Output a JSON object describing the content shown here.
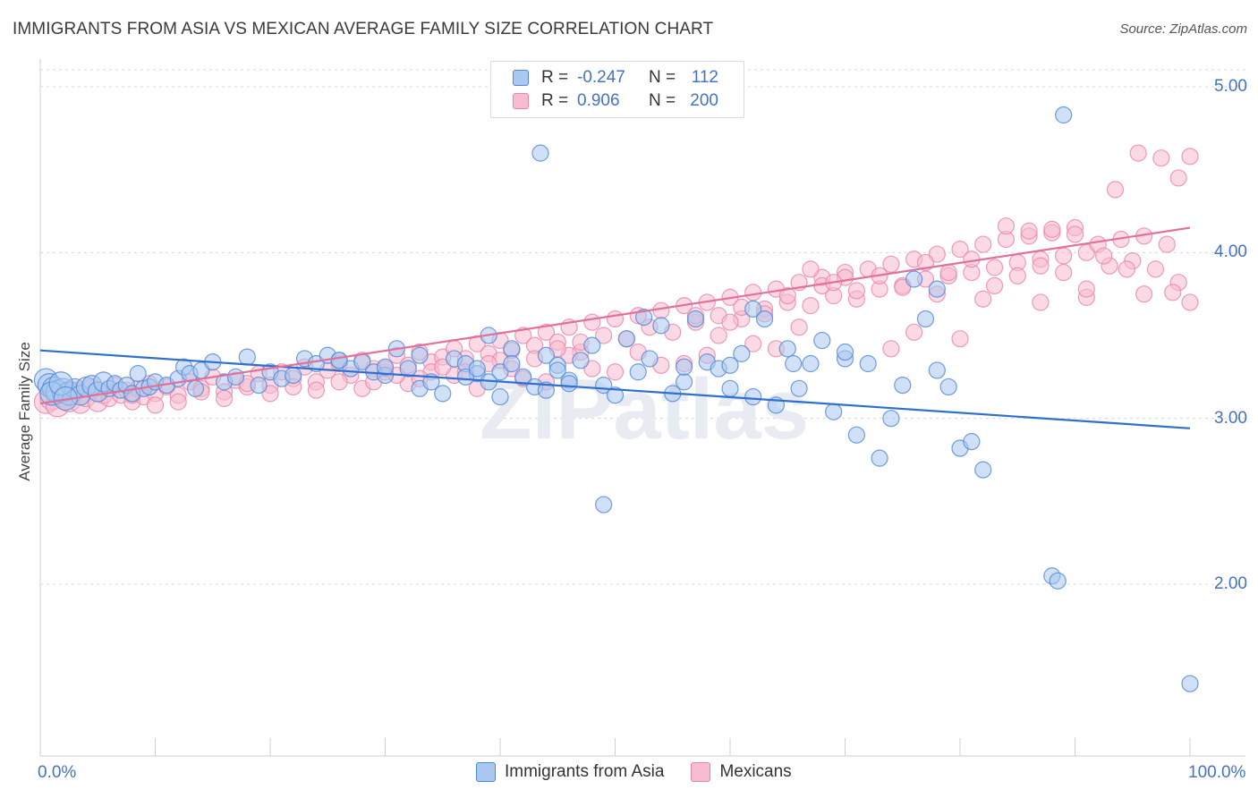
{
  "header": {
    "title": "IMMIGRANTS FROM ASIA VS MEXICAN AVERAGE FAMILY SIZE CORRELATION CHART",
    "source": "Source: ZipAtlas.com"
  },
  "watermark": "ZIPatlas",
  "legend": {
    "rows": [
      {
        "r_label": "R =",
        "r_value": "-0.247",
        "n_label": "N =",
        "n_value": "112"
      },
      {
        "r_label": "R =",
        "r_value": "0.906",
        "n_label": "N =",
        "n_value": "200"
      }
    ]
  },
  "bottom_legend": [
    "Immigrants from Asia",
    "Mexicans"
  ],
  "colors": {
    "asia_fill": "#aac8f0",
    "asia_stroke": "#4f86d6",
    "asia_line": "#2f6fd0",
    "mex_fill": "#f7bcd0",
    "mex_stroke": "#e884a8",
    "mex_line": "#e4709a",
    "tick_text": "#4472c4",
    "grid": "#d8d8d8"
  },
  "chart_data": {
    "type": "scatter",
    "title": "IMMIGRANTS FROM ASIA VS MEXICAN AVERAGE FAMILY SIZE CORRELATION CHART",
    "xlabel": "",
    "ylabel": "Average Family Size",
    "xlim": [
      0,
      100
    ],
    "ylim": [
      1.2,
      5.3
    ],
    "x_tick_labels": [
      "0.0%",
      "100.0%"
    ],
    "y_ticks": [
      2.0,
      3.0,
      4.0,
      5.0
    ],
    "y_tick_labels": [
      "2.00",
      "3.00",
      "4.00",
      "5.00"
    ],
    "grid": true,
    "legend_placement": "top-center",
    "series": [
      {
        "name": "Immigrants from Asia",
        "r": -0.247,
        "n": 112,
        "trend": {
          "x": [
            0,
            100
          ],
          "y": [
            3.41,
            2.94
          ]
        },
        "points": [
          [
            0.5,
            3.23
          ],
          [
            0.8,
            3.2
          ],
          [
            1.2,
            3.18
          ],
          [
            1.5,
            3.16
          ],
          [
            2,
            3.17
          ],
          [
            2.5,
            3.15
          ],
          [
            3,
            3.18
          ],
          [
            3.5,
            3.14
          ],
          [
            4,
            3.19
          ],
          [
            4.5,
            3.2
          ],
          [
            5,
            3.16
          ],
          [
            5.5,
            3.22
          ],
          [
            6,
            3.18
          ],
          [
            6.5,
            3.21
          ],
          [
            7,
            3.17
          ],
          [
            7.5,
            3.2
          ],
          [
            8,
            3.15
          ],
          [
            8.5,
            3.27
          ],
          [
            9,
            3.18
          ],
          [
            9.5,
            3.19
          ],
          [
            10,
            3.22
          ],
          [
            11,
            3.2
          ],
          [
            12,
            3.24
          ],
          [
            12.5,
            3.31
          ],
          [
            13,
            3.27
          ],
          [
            13.5,
            3.18
          ],
          [
            14,
            3.29
          ],
          [
            15,
            3.34
          ],
          [
            16,
            3.22
          ],
          [
            17,
            3.25
          ],
          [
            18,
            3.37
          ],
          [
            19,
            3.2
          ],
          [
            20,
            3.28
          ],
          [
            21,
            3.24
          ],
          [
            22,
            3.26
          ],
          [
            23,
            3.36
          ],
          [
            24,
            3.33
          ],
          [
            25,
            3.38
          ],
          [
            26,
            3.35
          ],
          [
            27,
            3.3
          ],
          [
            28,
            3.34
          ],
          [
            29,
            3.28
          ],
          [
            30,
            3.26
          ],
          [
            31,
            3.42
          ],
          [
            32,
            3.3
          ],
          [
            33,
            3.18
          ],
          [
            34,
            3.22
          ],
          [
            35,
            3.15
          ],
          [
            36,
            3.36
          ],
          [
            37,
            3.33
          ],
          [
            38,
            3.27
          ],
          [
            39,
            3.5
          ],
          [
            40,
            3.28
          ],
          [
            41,
            3.42
          ],
          [
            42,
            3.25
          ],
          [
            43,
            3.19
          ],
          [
            44,
            3.38
          ],
          [
            45,
            3.32
          ],
          [
            46,
            3.23
          ],
          [
            47,
            3.35
          ],
          [
            48,
            3.44
          ],
          [
            49,
            3.2
          ],
          [
            50,
            3.14
          ],
          [
            51,
            3.48
          ],
          [
            52,
            3.28
          ],
          [
            53,
            3.36
          ],
          [
            54,
            3.56
          ],
          [
            55,
            3.15
          ],
          [
            56,
            3.22
          ],
          [
            57,
            3.6
          ],
          [
            58,
            3.34
          ],
          [
            59,
            3.3
          ],
          [
            60,
            3.18
          ],
          [
            61,
            3.39
          ],
          [
            62,
            3.66
          ],
          [
            63,
            3.6
          ],
          [
            64,
            3.08
          ],
          [
            65,
            3.42
          ],
          [
            66,
            3.18
          ],
          [
            67,
            3.33
          ],
          [
            68,
            3.47
          ],
          [
            69,
            3.04
          ],
          [
            70,
            3.36
          ],
          [
            71,
            2.9
          ],
          [
            72,
            3.33
          ],
          [
            73,
            2.76
          ],
          [
            74,
            3.0
          ],
          [
            75,
            3.2
          ],
          [
            76,
            3.84
          ],
          [
            77,
            3.6
          ],
          [
            78,
            3.78
          ],
          [
            79,
            3.19
          ],
          [
            80,
            2.82
          ],
          [
            81,
            2.86
          ],
          [
            82,
            2.69
          ],
          [
            88,
            2.05
          ],
          [
            89,
            4.83
          ],
          [
            43.5,
            4.6
          ],
          [
            49,
            2.48
          ],
          [
            44,
            3.17
          ],
          [
            52.5,
            3.61
          ],
          [
            56,
            3.31
          ],
          [
            39,
            3.22
          ],
          [
            37,
            3.25
          ],
          [
            40,
            3.13
          ],
          [
            33,
            3.38
          ],
          [
            26,
            3.35
          ],
          [
            30,
            3.31
          ],
          [
            45,
            3.29
          ],
          [
            60,
            3.32
          ],
          [
            65.5,
            3.33
          ],
          [
            41,
            3.33
          ],
          [
            38,
            3.3
          ],
          [
            46,
            3.21
          ],
          [
            70,
            3.4
          ],
          [
            78,
            3.29
          ],
          [
            62,
            3.13
          ],
          [
            1,
            3.15
          ],
          [
            1.8,
            3.21
          ],
          [
            2.2,
            3.12
          ],
          [
            88.5,
            2.02
          ],
          [
            100,
            1.4
          ]
        ]
      },
      {
        "name": "Mexicans",
        "r": 0.906,
        "n": 200,
        "trend": {
          "x": [
            0,
            100
          ],
          "y": [
            3.09,
            4.15
          ]
        },
        "points": [
          [
            0.5,
            3.1
          ],
          [
            1,
            3.12
          ],
          [
            1.5,
            3.08
          ],
          [
            2,
            3.14
          ],
          [
            2.5,
            3.11
          ],
          [
            3,
            3.16
          ],
          [
            3.5,
            3.09
          ],
          [
            4,
            3.13
          ],
          [
            4.5,
            3.18
          ],
          [
            5,
            3.1
          ],
          [
            5.5,
            3.15
          ],
          [
            6,
            3.12
          ],
          [
            6.5,
            3.2
          ],
          [
            7,
            3.14
          ],
          [
            7.5,
            3.17
          ],
          [
            8,
            3.1
          ],
          [
            8.5,
            3.18
          ],
          [
            9,
            3.13
          ],
          [
            9.5,
            3.21
          ],
          [
            10,
            3.15
          ],
          [
            11,
            3.19
          ],
          [
            12,
            3.14
          ],
          [
            13,
            3.22
          ],
          [
            14,
            3.18
          ],
          [
            15,
            3.25
          ],
          [
            16,
            3.16
          ],
          [
            17,
            3.23
          ],
          [
            18,
            3.19
          ],
          [
            19,
            3.27
          ],
          [
            20,
            3.2
          ],
          [
            21,
            3.28
          ],
          [
            22,
            3.24
          ],
          [
            23,
            3.31
          ],
          [
            24,
            3.22
          ],
          [
            25,
            3.29
          ],
          [
            26,
            3.33
          ],
          [
            27,
            3.26
          ],
          [
            28,
            3.35
          ],
          [
            29,
            3.3
          ],
          [
            30,
            3.28
          ],
          [
            31,
            3.38
          ],
          [
            32,
            3.32
          ],
          [
            33,
            3.4
          ],
          [
            34,
            3.34
          ],
          [
            35,
            3.37
          ],
          [
            36,
            3.42
          ],
          [
            37,
            3.36
          ],
          [
            38,
            3.45
          ],
          [
            39,
            3.39
          ],
          [
            40,
            3.47
          ],
          [
            41,
            3.41
          ],
          [
            42,
            3.5
          ],
          [
            43,
            3.44
          ],
          [
            44,
            3.52
          ],
          [
            45,
            3.46
          ],
          [
            46,
            3.55
          ],
          [
            47,
            3.4
          ],
          [
            48,
            3.58
          ],
          [
            49,
            3.5
          ],
          [
            50,
            3.6
          ],
          [
            51,
            3.48
          ],
          [
            52,
            3.62
          ],
          [
            53,
            3.55
          ],
          [
            54,
            3.65
          ],
          [
            55,
            3.52
          ],
          [
            56,
            3.68
          ],
          [
            57,
            3.58
          ],
          [
            58,
            3.7
          ],
          [
            59,
            3.62
          ],
          [
            60,
            3.73
          ],
          [
            61,
            3.6
          ],
          [
            62,
            3.76
          ],
          [
            63,
            3.66
          ],
          [
            64,
            3.78
          ],
          [
            65,
            3.7
          ],
          [
            66,
            3.82
          ],
          [
            67,
            3.68
          ],
          [
            68,
            3.85
          ],
          [
            69,
            3.74
          ],
          [
            70,
            3.88
          ],
          [
            71,
            3.72
          ],
          [
            72,
            3.9
          ],
          [
            73,
            3.78
          ],
          [
            74,
            3.93
          ],
          [
            75,
            3.8
          ],
          [
            76,
            3.96
          ],
          [
            77,
            3.84
          ],
          [
            78,
            3.99
          ],
          [
            79,
            3.86
          ],
          [
            80,
            4.02
          ],
          [
            81,
            3.88
          ],
          [
            82,
            4.05
          ],
          [
            83,
            3.91
          ],
          [
            84,
            4.08
          ],
          [
            85,
            3.94
          ],
          [
            86,
            4.1
          ],
          [
            87,
            3.96
          ],
          [
            88,
            4.12
          ],
          [
            89,
            3.98
          ],
          [
            90,
            4.15
          ],
          [
            91,
            4.0
          ],
          [
            92,
            4.05
          ],
          [
            93,
            3.92
          ],
          [
            94,
            4.08
          ],
          [
            95,
            3.95
          ],
          [
            96,
            4.1
          ],
          [
            97,
            3.9
          ],
          [
            98,
            4.05
          ],
          [
            99,
            3.82
          ],
          [
            100,
            3.7
          ],
          [
            93.5,
            4.38
          ],
          [
            95.5,
            4.6
          ],
          [
            97.5,
            4.57
          ],
          [
            99,
            4.45
          ],
          [
            100,
            4.58
          ],
          [
            84,
            4.16
          ],
          [
            88,
            4.14
          ],
          [
            90,
            4.11
          ],
          [
            86,
            4.13
          ],
          [
            96,
            3.75
          ],
          [
            98.5,
            3.76
          ],
          [
            91,
            3.73
          ],
          [
            87,
            3.7
          ],
          [
            82,
            3.72
          ],
          [
            78,
            3.75
          ],
          [
            74,
            3.42
          ],
          [
            76,
            3.52
          ],
          [
            80,
            3.48
          ],
          [
            70,
            3.85
          ],
          [
            68,
            3.8
          ],
          [
            66,
            3.55
          ],
          [
            64,
            3.42
          ],
          [
            62,
            3.45
          ],
          [
            60,
            3.58
          ],
          [
            58,
            3.38
          ],
          [
            56,
            3.33
          ],
          [
            54,
            3.32
          ],
          [
            52,
            3.4
          ],
          [
            50,
            3.28
          ],
          [
            48,
            3.3
          ],
          [
            46,
            3.38
          ],
          [
            44,
            3.22
          ],
          [
            42,
            3.24
          ],
          [
            40,
            3.35
          ],
          [
            38,
            3.18
          ],
          [
            36,
            3.26
          ],
          [
            34,
            3.28
          ],
          [
            32,
            3.21
          ],
          [
            30,
            3.3
          ],
          [
            28,
            3.18
          ],
          [
            26,
            3.22
          ],
          [
            24,
            3.17
          ],
          [
            22,
            3.19
          ],
          [
            20,
            3.15
          ],
          [
            18,
            3.21
          ],
          [
            16,
            3.12
          ],
          [
            14,
            3.16
          ],
          [
            12,
            3.1
          ],
          [
            10,
            3.08
          ],
          [
            8,
            3.14
          ],
          [
            45,
            3.42
          ],
          [
            47,
            3.46
          ],
          [
            43,
            3.36
          ],
          [
            41,
            3.3
          ],
          [
            39,
            3.33
          ],
          [
            37,
            3.28
          ],
          [
            35,
            3.31
          ],
          [
            33,
            3.24
          ],
          [
            31,
            3.26
          ],
          [
            29,
            3.22
          ],
          [
            57,
            3.62
          ],
          [
            59,
            3.5
          ],
          [
            61,
            3.67
          ],
          [
            63,
            3.63
          ],
          [
            65,
            3.74
          ],
          [
            67,
            3.9
          ],
          [
            69,
            3.82
          ],
          [
            71,
            3.77
          ],
          [
            73,
            3.86
          ],
          [
            75,
            3.79
          ],
          [
            77,
            3.94
          ],
          [
            79,
            3.88
          ],
          [
            81,
            3.96
          ],
          [
            83,
            3.8
          ],
          [
            85,
            3.86
          ],
          [
            87,
            3.92
          ],
          [
            89,
            3.88
          ],
          [
            91,
            3.78
          ],
          [
            92.5,
            3.98
          ],
          [
            94.5,
            3.9
          ]
        ]
      }
    ]
  }
}
